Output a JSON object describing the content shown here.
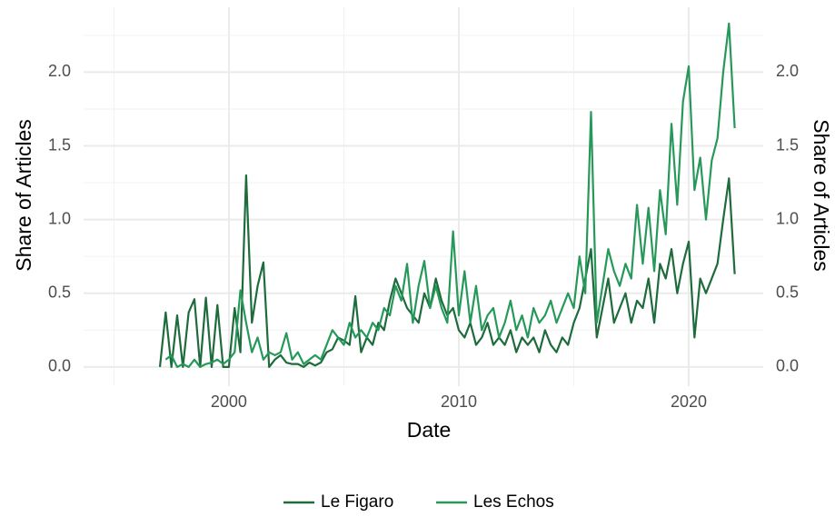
{
  "chart_data": {
    "type": "line",
    "x_label": "Date",
    "y_label": "Share of Articles",
    "y2_label": "Share of Articles",
    "x": [
      1997,
      1997.25,
      1997.5,
      1997.75,
      1998,
      1998.25,
      1998.5,
      1998.75,
      1999,
      1999.25,
      1999.5,
      1999.75,
      2000,
      2000.25,
      2000.5,
      2000.75,
      2001,
      2001.25,
      2001.5,
      2001.75,
      2002,
      2002.25,
      2002.5,
      2002.75,
      2003,
      2003.25,
      2003.5,
      2003.75,
      2004,
      2004.25,
      2004.5,
      2004.75,
      2005,
      2005.25,
      2005.5,
      2005.75,
      2006,
      2006.25,
      2006.5,
      2006.75,
      2007,
      2007.25,
      2007.5,
      2007.75,
      2008,
      2008.25,
      2008.5,
      2008.75,
      2009,
      2009.25,
      2009.5,
      2009.75,
      2010,
      2010.25,
      2010.5,
      2010.75,
      2011,
      2011.25,
      2011.5,
      2011.75,
      2012,
      2012.25,
      2012.5,
      2012.75,
      2013,
      2013.25,
      2013.5,
      2013.75,
      2014,
      2014.25,
      2014.5,
      2014.75,
      2015,
      2015.25,
      2015.5,
      2015.75,
      2016,
      2016.25,
      2016.5,
      2016.75,
      2017,
      2017.25,
      2017.5,
      2017.75,
      2018,
      2018.25,
      2018.5,
      2018.75,
      2019,
      2019.25,
      2019.5,
      2019.75,
      2020,
      2020.25,
      2020.5,
      2020.75,
      2021,
      2021.25,
      2021.5,
      2021.75,
      2022
    ],
    "series": [
      {
        "name": "Le Figaro",
        "color": "#1e6b3c",
        "values": [
          0,
          0.37,
          0,
          0.35,
          0,
          0.37,
          0.46,
          0,
          0.47,
          0,
          0.42,
          0,
          0,
          0.4,
          0.1,
          1.3,
          0.3,
          0.55,
          0.71,
          0,
          0.05,
          0.08,
          0.03,
          0.02,
          0.02,
          0,
          0.03,
          0.01,
          0.03,
          0.1,
          0.12,
          0.2,
          0.18,
          0.15,
          0.48,
          0.1,
          0.2,
          0.15,
          0.3,
          0.25,
          0.45,
          0.6,
          0.5,
          0.4,
          0.35,
          0.3,
          0.5,
          0.4,
          0.6,
          0.45,
          0.35,
          0.4,
          0.25,
          0.2,
          0.3,
          0.15,
          0.2,
          0.3,
          0.15,
          0.2,
          0.15,
          0.25,
          0.1,
          0.2,
          0.15,
          0.2,
          0.1,
          0.25,
          0.15,
          0.1,
          0.2,
          0.15,
          0.3,
          0.4,
          0.6,
          0.8,
          0.2,
          0.4,
          0.6,
          0.3,
          0.4,
          0.5,
          0.3,
          0.45,
          0.4,
          0.6,
          0.3,
          0.7,
          0.6,
          0.8,
          0.5,
          0.7,
          0.85,
          0.2,
          0.6,
          0.5,
          0.6,
          0.7,
          1.0,
          1.28,
          0.63
        ]
      },
      {
        "name": "Les Echos",
        "color": "#26995a",
        "values": [
          null,
          0.05,
          0.08,
          0,
          0.02,
          0,
          0.05,
          0,
          0.02,
          0.03,
          0.05,
          0.02,
          0.05,
          0.1,
          0.52,
          0.3,
          0.1,
          0.2,
          0.05,
          0.1,
          0.08,
          0.1,
          0.23,
          0.05,
          0.1,
          0.02,
          0.05,
          0.08,
          0.05,
          0.15,
          0.25,
          0.2,
          0.15,
          0.3,
          0.2,
          0.25,
          0.2,
          0.3,
          0.25,
          0.4,
          0.35,
          0.55,
          0.45,
          0.7,
          0.3,
          0.55,
          0.72,
          0.4,
          0.55,
          0.4,
          0.3,
          0.92,
          0.35,
          0.65,
          0.3,
          0.55,
          0.25,
          0.35,
          0.4,
          0.2,
          0.3,
          0.45,
          0.25,
          0.35,
          0.2,
          0.4,
          0.3,
          0.35,
          0.45,
          0.3,
          0.4,
          0.5,
          0.4,
          0.75,
          0.5,
          1.73,
          0.3,
          0.55,
          0.8,
          0.65,
          0.55,
          0.7,
          0.6,
          1.1,
          0.7,
          1.08,
          0.65,
          1.2,
          0.9,
          1.65,
          1.1,
          1.8,
          2.04,
          1.2,
          1.42,
          1.0,
          1.4,
          1.55,
          2.0,
          2.33,
          1.62
        ]
      }
    ],
    "xlim": [
      1993.68,
      2023.24
    ],
    "xticks": [
      2000,
      2010,
      2020
    ],
    "x_minor_ticks": [
      1995,
      2005,
      2015
    ],
    "ylim": [
      -0.13,
      2.44
    ],
    "yticks": [
      {
        "value": 0,
        "label": "0.0"
      },
      {
        "value": 0.5,
        "label": "0.5"
      },
      {
        "value": 1,
        "label": "1.0"
      },
      {
        "value": 1.5,
        "label": "1.5"
      },
      {
        "value": 2,
        "label": "2.0"
      }
    ],
    "y_minor_ticks": [
      0.25,
      0.75,
      1.25,
      1.75,
      2.25
    ],
    "y2lim": [
      -0.13,
      2.44
    ],
    "y2ticks": [
      {
        "value": 0,
        "label": "0.0"
      },
      {
        "value": 0.5,
        "label": "0.5"
      },
      {
        "value": 1,
        "label": "1.0"
      },
      {
        "value": 1.5,
        "label": "1.5"
      },
      {
        "value": 2,
        "label": "2.0"
      }
    ],
    "grid": true,
    "legend": "bottom"
  }
}
